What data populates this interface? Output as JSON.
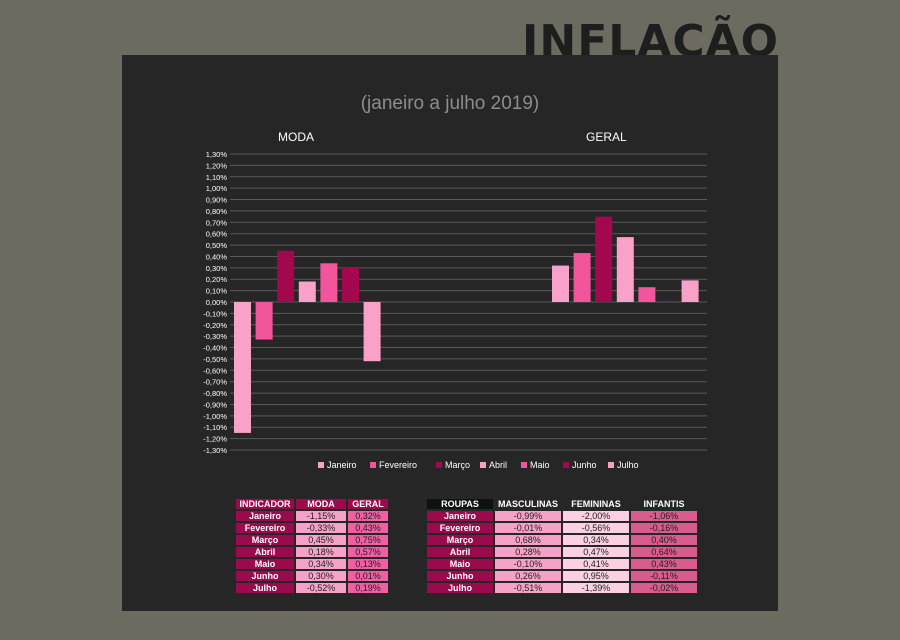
{
  "page": {
    "title": "INFLAÇÃO",
    "subtitle": "(janeiro a julho 2019)"
  },
  "chart_data": {
    "type": "bar",
    "groups": [
      "MODA",
      "GERAL"
    ],
    "ylim": [
      -1.3,
      1.3
    ],
    "yticks": [
      "1,30%",
      "1,20%",
      "1,10%",
      "1,00%",
      "0,90%",
      "0,80%",
      "0,70%",
      "0,60%",
      "0,50%",
      "0,40%",
      "0,30%",
      "0,20%",
      "0,10%",
      "0,00%",
      "-0,10%",
      "-0,20%",
      "-0,30%",
      "-0,40%",
      "-0,50%",
      "-0,60%",
      "-0,70%",
      "-0,80%",
      "-0,90%",
      "-1,00%",
      "-1,10%",
      "-1,20%",
      "-1,30%"
    ],
    "grid": true,
    "legend_position": "bottom",
    "series": [
      {
        "name": "Janeiro",
        "color": "#f9a1c8",
        "values": [
          -1.15,
          0.32
        ]
      },
      {
        "name": "Fevereiro",
        "color": "#f2559b",
        "values": [
          -0.33,
          0.43
        ]
      },
      {
        "name": "Março",
        "color": "#a3074d",
        "values": [
          0.45,
          0.75
        ]
      },
      {
        "name": "Abril",
        "color": "#f9a1c8",
        "values": [
          0.18,
          0.57
        ]
      },
      {
        "name": "Maio",
        "color": "#f2559b",
        "values": [
          0.34,
          0.13
        ]
      },
      {
        "name": "Junho",
        "color": "#a3074d",
        "values": [
          0.3,
          0.01
        ]
      },
      {
        "name": "Julho",
        "color": "#f9a1c8",
        "values": [
          -0.52,
          0.19
        ]
      }
    ]
  },
  "table_indicador": {
    "headers": [
      "INDICADOR",
      "MODA",
      "GERAL"
    ],
    "rows": [
      [
        "Janeiro",
        "-1,15%",
        "0,32%"
      ],
      [
        "Fevereiro",
        "-0,33%",
        "0,43%"
      ],
      [
        "Março",
        "0,45%",
        "0,75%"
      ],
      [
        "Abril",
        "0,18%",
        "0,57%"
      ],
      [
        "Maio",
        "0,34%",
        "0,13%"
      ],
      [
        "Junho",
        "0,30%",
        "0,01%"
      ],
      [
        "Julho",
        "-0,52%",
        "0,19%"
      ]
    ]
  },
  "table_roupas": {
    "headers": [
      "ROUPAS",
      "MASCULINAS",
      "FEMININAS",
      "INFANTIS"
    ],
    "rows": [
      [
        "Janeiro",
        "-0,99%",
        "-2,00%",
        "-1,06%"
      ],
      [
        "Fevereiro",
        "-0,01%",
        "-0,56%",
        "-0,16%"
      ],
      [
        "Março",
        "0,68%",
        "0,34%",
        "0,40%"
      ],
      [
        "Abril",
        "0,28%",
        "0,47%",
        "0,64%"
      ],
      [
        "Maio",
        "-0,10%",
        "0,41%",
        "0,43%"
      ],
      [
        "Junho",
        "0,26%",
        "0,95%",
        "-0,11%"
      ],
      [
        "Julho",
        "-0,51%",
        "-1,39%",
        "-0,02%"
      ]
    ]
  }
}
